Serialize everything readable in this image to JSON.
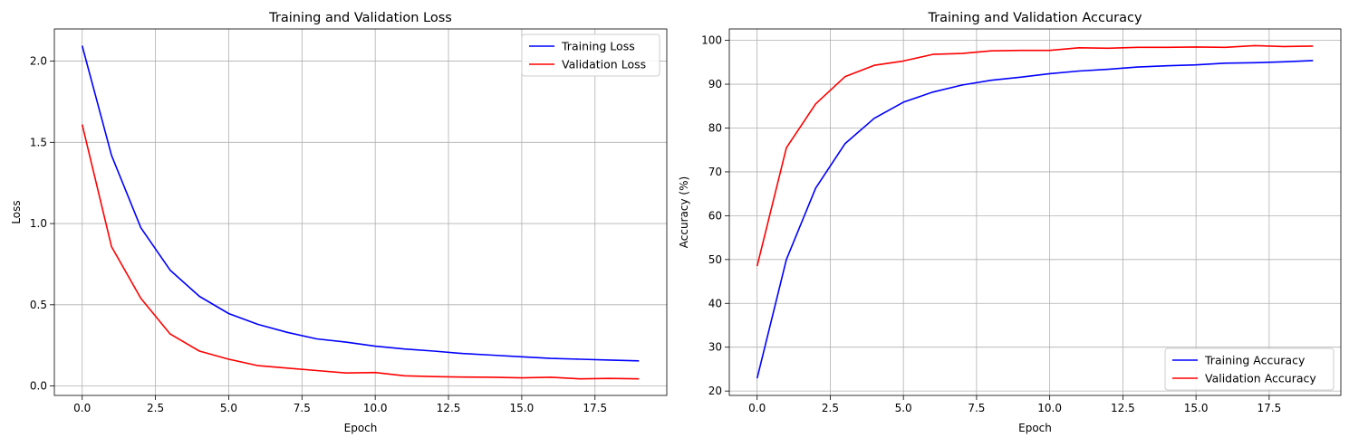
{
  "chart_data": [
    {
      "type": "line",
      "title": "Training and Validation Loss",
      "xlabel": "Epoch",
      "ylabel": "Loss",
      "xlim": [
        -0.95,
        19.95
      ],
      "ylim": [
        -0.058,
        2.198
      ],
      "xticks": [
        0,
        2.5,
        5,
        7.5,
        10,
        12.5,
        15,
        17.5
      ],
      "xtick_labels": [
        "0.0",
        "2.5",
        "5.0",
        "7.5",
        "10.0",
        "12.5",
        "15.0",
        "17.5"
      ],
      "yticks": [
        0,
        0.5,
        1.0,
        1.5,
        2.0
      ],
      "ytick_labels": [
        "0.0",
        "0.5",
        "1.0",
        "1.5",
        "2.0"
      ],
      "grid": true,
      "legend": "upper right",
      "x": [
        0,
        1,
        2,
        3,
        4,
        5,
        6,
        7,
        8,
        9,
        10,
        11,
        12,
        13,
        14,
        15,
        16,
        17,
        18,
        19
      ],
      "series": [
        {
          "name": "Training Loss",
          "color": "#0000ff",
          "values": [
            2.095,
            1.42,
            0.975,
            0.713,
            0.552,
            0.446,
            0.379,
            0.33,
            0.29,
            0.27,
            0.245,
            0.228,
            0.215,
            0.2,
            0.19,
            0.18,
            0.17,
            0.165,
            0.16,
            0.155
          ]
        },
        {
          "name": "Validation Loss",
          "color": "#ff0000",
          "values": [
            1.61,
            0.858,
            0.54,
            0.32,
            0.215,
            0.165,
            0.125,
            0.11,
            0.095,
            0.08,
            0.083,
            0.063,
            0.058,
            0.055,
            0.054,
            0.05,
            0.054,
            0.044,
            0.047,
            0.044
          ]
        }
      ]
    },
    {
      "type": "line",
      "title": "Training and Validation Accuracy",
      "xlabel": "Epoch",
      "ylabel": "Accuracy (%)",
      "xlim": [
        -0.95,
        19.95
      ],
      "ylim": [
        19.0,
        102.6
      ],
      "xticks": [
        0,
        2.5,
        5,
        7.5,
        10,
        12.5,
        15,
        17.5
      ],
      "xtick_labels": [
        "0.0",
        "2.5",
        "5.0",
        "7.5",
        "10.0",
        "12.5",
        "15.0",
        "17.5"
      ],
      "yticks": [
        20,
        30,
        40,
        50,
        60,
        70,
        80,
        90,
        100
      ],
      "ytick_labels": [
        "20",
        "30",
        "40",
        "50",
        "60",
        "70",
        "80",
        "90",
        "100"
      ],
      "grid": true,
      "legend": "lower right",
      "x": [
        0,
        1,
        2,
        3,
        4,
        5,
        6,
        7,
        8,
        9,
        10,
        11,
        12,
        13,
        14,
        15,
        16,
        17,
        18,
        19
      ],
      "series": [
        {
          "name": "Training Accuracy",
          "color": "#0000ff",
          "values": [
            22.9,
            50.0,
            66.3,
            76.4,
            82.2,
            85.9,
            88.2,
            89.8,
            90.9,
            91.6,
            92.4,
            93.0,
            93.4,
            93.9,
            94.2,
            94.4,
            94.8,
            94.9,
            95.1,
            95.4
          ]
        },
        {
          "name": "Validation Accuracy",
          "color": "#ff0000",
          "values": [
            48.5,
            75.5,
            85.5,
            91.7,
            94.3,
            95.3,
            96.8,
            97.0,
            97.6,
            97.7,
            97.7,
            98.3,
            98.2,
            98.4,
            98.4,
            98.5,
            98.4,
            98.8,
            98.6,
            98.7
          ]
        }
      ]
    }
  ]
}
